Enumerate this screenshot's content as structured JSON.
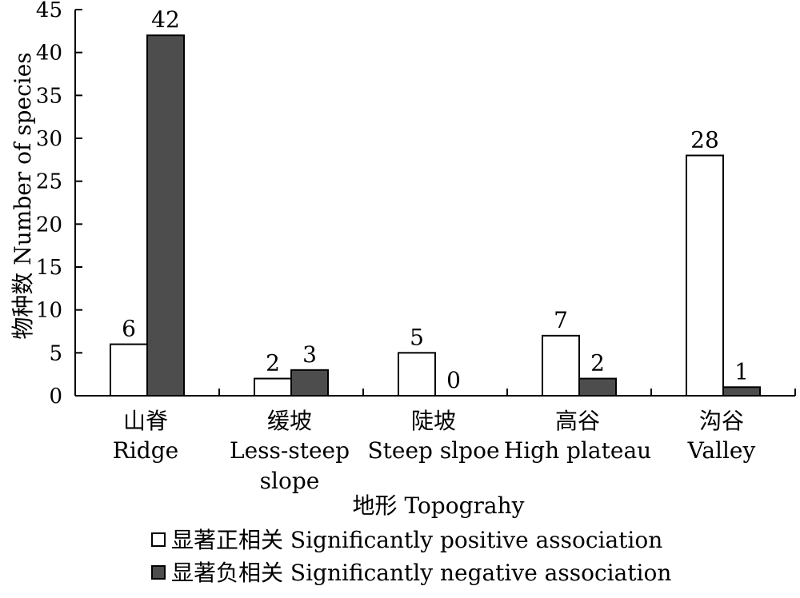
{
  "chart_data": {
    "type": "bar",
    "title": "",
    "xlabel": "地形 Topograhy",
    "ylabel": "物种数 Number of species",
    "ylim": [
      0,
      45
    ],
    "yticks": [
      0,
      5,
      10,
      15,
      20,
      25,
      30,
      35,
      40,
      45
    ],
    "grid": false,
    "legend_position": "bottom",
    "categories": [
      {
        "zh": "山脊",
        "en": [
          "Ridge"
        ]
      },
      {
        "zh": "缓坡",
        "en": [
          "Less-steep",
          "slope"
        ]
      },
      {
        "zh": "陡坡",
        "en": [
          "Steep slpoe"
        ]
      },
      {
        "zh": "高谷",
        "en": [
          "High plateau"
        ]
      },
      {
        "zh": "沟谷",
        "en": [
          "Valley"
        ]
      }
    ],
    "series": [
      {
        "name": "显著正相关 Significantly positive association",
        "values": [
          6,
          2,
          5,
          7,
          28
        ],
        "color": "#ffffff"
      },
      {
        "name": "显著负相关 Significantly negative association",
        "values": [
          42,
          3,
          0,
          2,
          1
        ],
        "color": "#4d4d4d"
      }
    ]
  }
}
